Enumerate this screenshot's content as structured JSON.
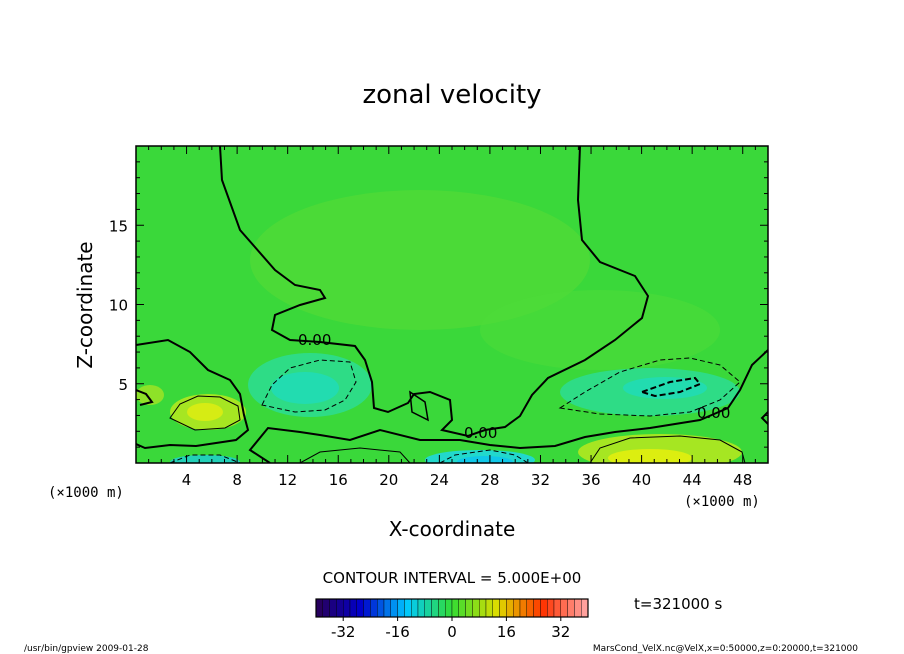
{
  "chart_data": {
    "type": "heatmap",
    "title": "zonal velocity",
    "xlabel": "X-coordinate",
    "ylabel": "Z-coordinate",
    "x_unit": "(×1000 m)",
    "y_unit": "(×1000 m)",
    "xlim": [
      0,
      50
    ],
    "ylim": [
      0,
      20
    ],
    "x_ticks": [
      4,
      8,
      12,
      16,
      20,
      24,
      28,
      32,
      36,
      40,
      44,
      48
    ],
    "y_ticks": [
      5,
      10,
      15
    ],
    "contour_interval_text": "CONTOUR INTERVAL = 5.000E+00",
    "contour_labels": [
      "0.00",
      "0.00",
      "0.00"
    ],
    "colorbar": {
      "ticks": [
        -32,
        -16,
        0,
        16,
        32
      ],
      "range": [
        -40,
        40
      ],
      "colors": [
        "#2a0055",
        "#0000cc",
        "#00c8ff",
        "#33dd33",
        "#dddd00",
        "#ff3300",
        "#ffaaaa"
      ]
    },
    "time_label": "t=321000 s",
    "grid": false
  },
  "footer": {
    "left": "/usr/bin/gpview  2009-01-28",
    "right": "MarsCond_VelX.nc@VelX,x=0:50000,z=0:20000,t=321000"
  }
}
